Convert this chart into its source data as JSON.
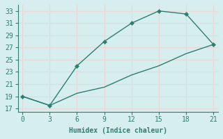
{
  "title": "",
  "xlabel": "Humidex (Indice chaleur)",
  "ylabel": "",
  "background_color": "#d6eeee",
  "grid_color": "#e8d8d8",
  "line_color": "#2e7d6e",
  "series1_x": [
    0,
    3,
    6,
    9,
    12,
    15,
    18,
    21
  ],
  "series1_y": [
    19,
    17.5,
    24,
    28,
    31,
    33,
    32.5,
    27.5
  ],
  "series2_x": [
    0,
    3,
    6,
    9,
    12,
    15,
    18,
    21
  ],
  "series2_y": [
    19,
    17.5,
    19.5,
    20.5,
    22.5,
    24,
    26,
    27.5
  ],
  "xlim": [
    -0.5,
    21.5
  ],
  "ylim": [
    16.5,
    34
  ],
  "xticks": [
    0,
    3,
    6,
    9,
    12,
    15,
    18,
    21
  ],
  "yticks": [
    17,
    19,
    21,
    23,
    25,
    27,
    29,
    31,
    33
  ],
  "marker": "D",
  "markersize": 3,
  "linewidth": 1.0,
  "font_family": "monospace",
  "tick_fontsize": 7,
  "xlabel_fontsize": 7
}
